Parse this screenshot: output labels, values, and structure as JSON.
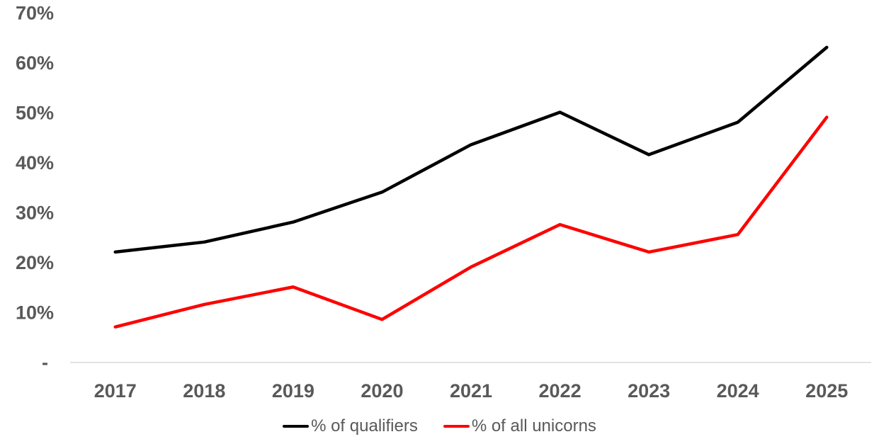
{
  "chart_data": {
    "type": "line",
    "categories": [
      "2017",
      "2018",
      "2019",
      "2020",
      "2021",
      "2022",
      "2023",
      "2024",
      "2025"
    ],
    "series": [
      {
        "name": "% of qualifiers",
        "color": "#000000",
        "values": [
          22,
          24,
          28,
          34,
          43.5,
          50,
          41.5,
          48,
          63
        ]
      },
      {
        "name": "% of all unicorns",
        "color": "#FF0000",
        "values": [
          7,
          11.5,
          15,
          8.5,
          19,
          27.5,
          22,
          25.5,
          49
        ]
      }
    ],
    "y_ticks": [
      {
        "label": "70%",
        "value": 70
      },
      {
        "label": "60%",
        "value": 60
      },
      {
        "label": "50%",
        "value": 50
      },
      {
        "label": "40%",
        "value": 40
      },
      {
        "label": "30%",
        "value": 30
      },
      {
        "label": "20%",
        "value": 20
      },
      {
        "label": "10%",
        "value": 10
      },
      {
        "label": "-",
        "value": 0
      }
    ],
    "title": "",
    "xlabel": "",
    "ylabel": "",
    "ylim": [
      0,
      70
    ],
    "grid": false,
    "legend_position": "bottom",
    "colors": {
      "tick_label": "#595959",
      "legend_text": "#595959",
      "axis_line": "#D9D9D9",
      "background": "#FFFFFF"
    }
  }
}
